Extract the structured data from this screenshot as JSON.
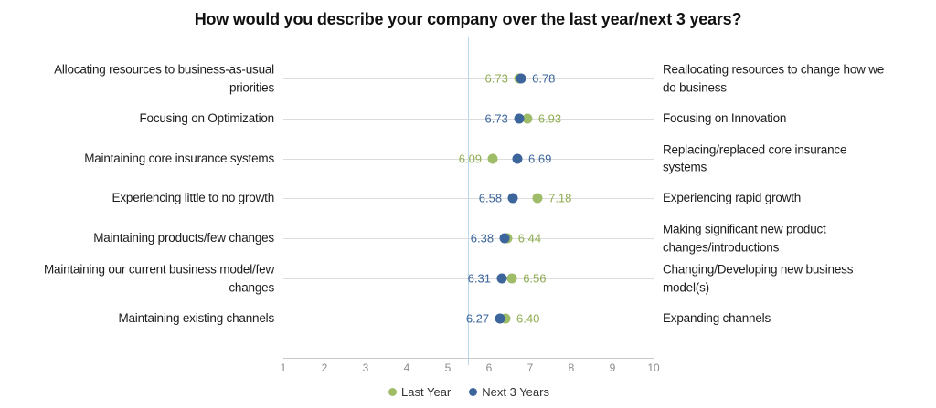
{
  "title": "How would you describe your company over the last year/next 3 years?",
  "chart_data": {
    "type": "scatter",
    "subtype": "dumbbell-dot-plot",
    "title": "How would you describe your company over the last year/next 3 years?",
    "x_axis": {
      "min": 1,
      "max": 10,
      "ticks": [
        1,
        2,
        3,
        4,
        5,
        6,
        7,
        8,
        9,
        10
      ]
    },
    "reference_line_x": 5.5,
    "grid": "horizontal-per-row",
    "legend_position": "bottom-center",
    "legend": [
      {
        "name": "Last Year",
        "color": "#9fbc68"
      },
      {
        "name": "Next 3 Years",
        "color": "#3b659b"
      }
    ],
    "series_keys": [
      "last_year",
      "next_3_years"
    ],
    "rows": [
      {
        "left_label": "Allocating resources to business-as-usual priorities",
        "right_label": "Reallocating resources to change how we do business",
        "last_year": 6.73,
        "next_3_years": 6.78
      },
      {
        "left_label": "Focusing on Optimization",
        "right_label": "Focusing on Innovation",
        "last_year": 6.93,
        "next_3_years": 6.73
      },
      {
        "left_label": "Maintaining core insurance systems",
        "right_label": "Replacing/replaced core insurance systems",
        "last_year": 6.09,
        "next_3_years": 6.69
      },
      {
        "left_label": "Experiencing little to no growth",
        "right_label": "Experiencing rapid growth",
        "last_year": 7.18,
        "next_3_years": 6.58
      },
      {
        "left_label": "Maintaining products/few changes",
        "right_label": "Making significant new product changes/introductions",
        "last_year": 6.44,
        "next_3_years": 6.38
      },
      {
        "left_label": "Maintaining our current business model/few changes",
        "right_label": "Changing/Developing new business model(s)",
        "last_year": 6.56,
        "next_3_years": 6.31
      },
      {
        "left_label": "Maintaining existing channels",
        "right_label": "Expanding channels",
        "last_year": 6.4,
        "next_3_years": 6.27
      }
    ],
    "colors": {
      "last_year_dot": "#9fbc68",
      "last_year_text": "#8fad52",
      "next_3_years_dot": "#3b659b",
      "next_3_years_text": "#3b659b",
      "reference_line": "#b7d7ec",
      "gridline": "#dcdcdc",
      "top_border": "#cfcfcf",
      "axis_line": "#c9c9c9",
      "tick_text": "#8c8c8c",
      "category_text": "#1c1c1c"
    }
  }
}
